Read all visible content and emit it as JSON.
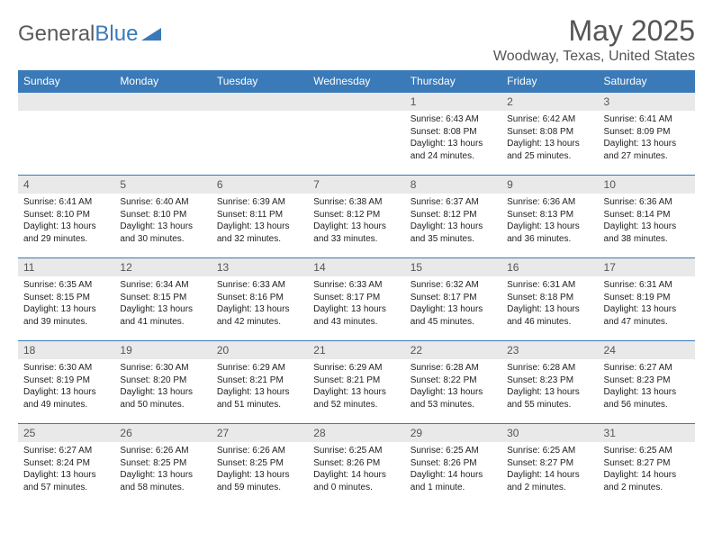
{
  "brand": {
    "part1": "General",
    "part2": "Blue"
  },
  "title": "May 2025",
  "location": "Woodway, Texas, United States",
  "colors": {
    "header_bg": "#3a7ab8",
    "header_text": "#ffffff",
    "daynum_bg": "#e9e9e9",
    "border": "#3a7ab8",
    "body_bg": "#ffffff",
    "text": "#333333"
  },
  "weekdays": [
    "Sunday",
    "Monday",
    "Tuesday",
    "Wednesday",
    "Thursday",
    "Friday",
    "Saturday"
  ],
  "weeks": [
    [
      null,
      null,
      null,
      null,
      {
        "n": "1",
        "sunrise": "Sunrise: 6:43 AM",
        "sunset": "Sunset: 8:08 PM",
        "daylight": "Daylight: 13 hours and 24 minutes."
      },
      {
        "n": "2",
        "sunrise": "Sunrise: 6:42 AM",
        "sunset": "Sunset: 8:08 PM",
        "daylight": "Daylight: 13 hours and 25 minutes."
      },
      {
        "n": "3",
        "sunrise": "Sunrise: 6:41 AM",
        "sunset": "Sunset: 8:09 PM",
        "daylight": "Daylight: 13 hours and 27 minutes."
      }
    ],
    [
      {
        "n": "4",
        "sunrise": "Sunrise: 6:41 AM",
        "sunset": "Sunset: 8:10 PM",
        "daylight": "Daylight: 13 hours and 29 minutes."
      },
      {
        "n": "5",
        "sunrise": "Sunrise: 6:40 AM",
        "sunset": "Sunset: 8:10 PM",
        "daylight": "Daylight: 13 hours and 30 minutes."
      },
      {
        "n": "6",
        "sunrise": "Sunrise: 6:39 AM",
        "sunset": "Sunset: 8:11 PM",
        "daylight": "Daylight: 13 hours and 32 minutes."
      },
      {
        "n": "7",
        "sunrise": "Sunrise: 6:38 AM",
        "sunset": "Sunset: 8:12 PM",
        "daylight": "Daylight: 13 hours and 33 minutes."
      },
      {
        "n": "8",
        "sunrise": "Sunrise: 6:37 AM",
        "sunset": "Sunset: 8:12 PM",
        "daylight": "Daylight: 13 hours and 35 minutes."
      },
      {
        "n": "9",
        "sunrise": "Sunrise: 6:36 AM",
        "sunset": "Sunset: 8:13 PM",
        "daylight": "Daylight: 13 hours and 36 minutes."
      },
      {
        "n": "10",
        "sunrise": "Sunrise: 6:36 AM",
        "sunset": "Sunset: 8:14 PM",
        "daylight": "Daylight: 13 hours and 38 minutes."
      }
    ],
    [
      {
        "n": "11",
        "sunrise": "Sunrise: 6:35 AM",
        "sunset": "Sunset: 8:15 PM",
        "daylight": "Daylight: 13 hours and 39 minutes."
      },
      {
        "n": "12",
        "sunrise": "Sunrise: 6:34 AM",
        "sunset": "Sunset: 8:15 PM",
        "daylight": "Daylight: 13 hours and 41 minutes."
      },
      {
        "n": "13",
        "sunrise": "Sunrise: 6:33 AM",
        "sunset": "Sunset: 8:16 PM",
        "daylight": "Daylight: 13 hours and 42 minutes."
      },
      {
        "n": "14",
        "sunrise": "Sunrise: 6:33 AM",
        "sunset": "Sunset: 8:17 PM",
        "daylight": "Daylight: 13 hours and 43 minutes."
      },
      {
        "n": "15",
        "sunrise": "Sunrise: 6:32 AM",
        "sunset": "Sunset: 8:17 PM",
        "daylight": "Daylight: 13 hours and 45 minutes."
      },
      {
        "n": "16",
        "sunrise": "Sunrise: 6:31 AM",
        "sunset": "Sunset: 8:18 PM",
        "daylight": "Daylight: 13 hours and 46 minutes."
      },
      {
        "n": "17",
        "sunrise": "Sunrise: 6:31 AM",
        "sunset": "Sunset: 8:19 PM",
        "daylight": "Daylight: 13 hours and 47 minutes."
      }
    ],
    [
      {
        "n": "18",
        "sunrise": "Sunrise: 6:30 AM",
        "sunset": "Sunset: 8:19 PM",
        "daylight": "Daylight: 13 hours and 49 minutes."
      },
      {
        "n": "19",
        "sunrise": "Sunrise: 6:30 AM",
        "sunset": "Sunset: 8:20 PM",
        "daylight": "Daylight: 13 hours and 50 minutes."
      },
      {
        "n": "20",
        "sunrise": "Sunrise: 6:29 AM",
        "sunset": "Sunset: 8:21 PM",
        "daylight": "Daylight: 13 hours and 51 minutes."
      },
      {
        "n": "21",
        "sunrise": "Sunrise: 6:29 AM",
        "sunset": "Sunset: 8:21 PM",
        "daylight": "Daylight: 13 hours and 52 minutes."
      },
      {
        "n": "22",
        "sunrise": "Sunrise: 6:28 AM",
        "sunset": "Sunset: 8:22 PM",
        "daylight": "Daylight: 13 hours and 53 minutes."
      },
      {
        "n": "23",
        "sunrise": "Sunrise: 6:28 AM",
        "sunset": "Sunset: 8:23 PM",
        "daylight": "Daylight: 13 hours and 55 minutes."
      },
      {
        "n": "24",
        "sunrise": "Sunrise: 6:27 AM",
        "sunset": "Sunset: 8:23 PM",
        "daylight": "Daylight: 13 hours and 56 minutes."
      }
    ],
    [
      {
        "n": "25",
        "sunrise": "Sunrise: 6:27 AM",
        "sunset": "Sunset: 8:24 PM",
        "daylight": "Daylight: 13 hours and 57 minutes."
      },
      {
        "n": "26",
        "sunrise": "Sunrise: 6:26 AM",
        "sunset": "Sunset: 8:25 PM",
        "daylight": "Daylight: 13 hours and 58 minutes."
      },
      {
        "n": "27",
        "sunrise": "Sunrise: 6:26 AM",
        "sunset": "Sunset: 8:25 PM",
        "daylight": "Daylight: 13 hours and 59 minutes."
      },
      {
        "n": "28",
        "sunrise": "Sunrise: 6:25 AM",
        "sunset": "Sunset: 8:26 PM",
        "daylight": "Daylight: 14 hours and 0 minutes."
      },
      {
        "n": "29",
        "sunrise": "Sunrise: 6:25 AM",
        "sunset": "Sunset: 8:26 PM",
        "daylight": "Daylight: 14 hours and 1 minute."
      },
      {
        "n": "30",
        "sunrise": "Sunrise: 6:25 AM",
        "sunset": "Sunset: 8:27 PM",
        "daylight": "Daylight: 14 hours and 2 minutes."
      },
      {
        "n": "31",
        "sunrise": "Sunrise: 6:25 AM",
        "sunset": "Sunset: 8:27 PM",
        "daylight": "Daylight: 14 hours and 2 minutes."
      }
    ]
  ]
}
